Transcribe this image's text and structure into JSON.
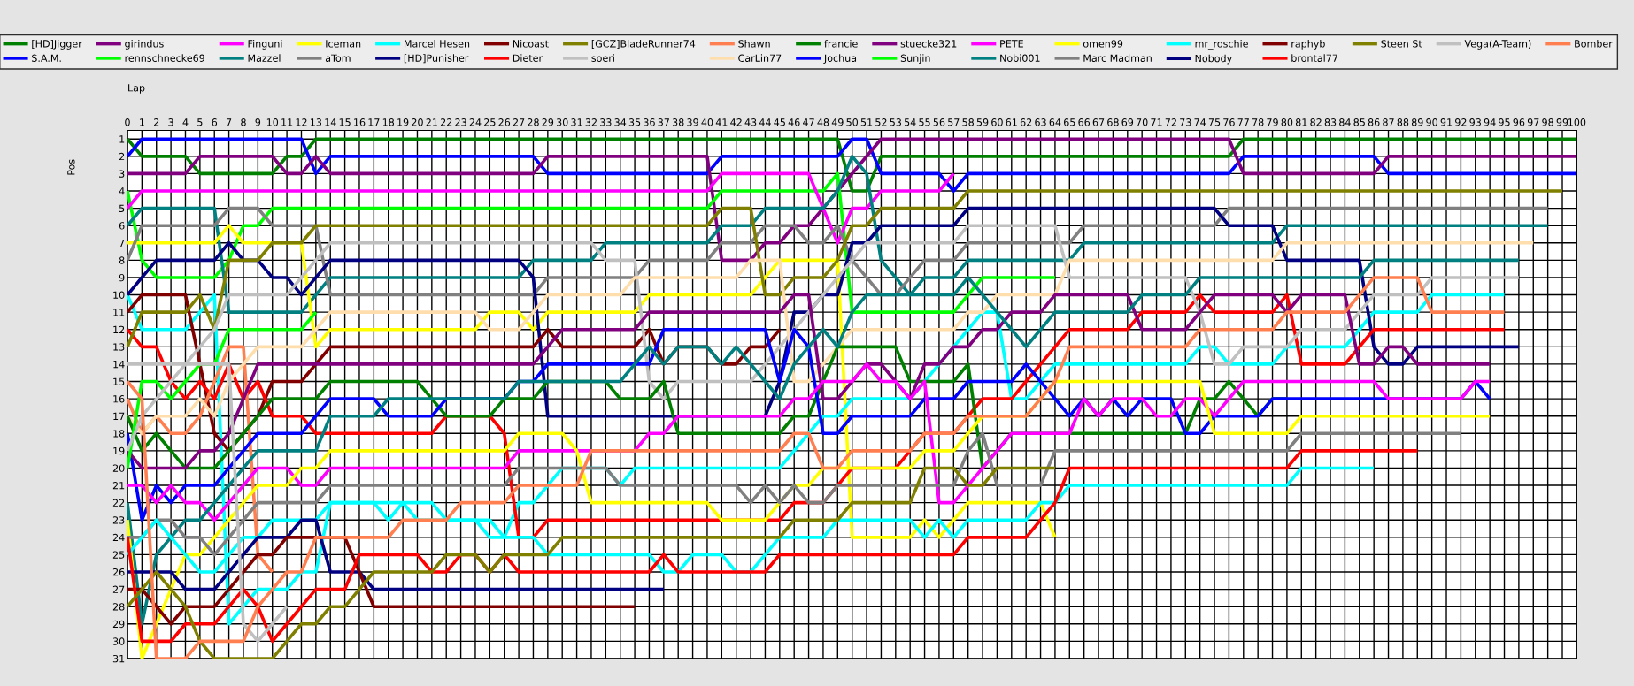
{
  "chart_data": {
    "type": "line",
    "xlabel": "Lap",
    "ylabel": "Pos",
    "xlim": [
      0,
      100
    ],
    "ylim": [
      31,
      0.5
    ],
    "xticks": [
      0,
      1,
      2,
      3,
      4,
      5,
      6,
      7,
      8,
      9,
      10,
      11,
      12,
      13,
      14,
      15,
      16,
      17,
      18,
      19,
      20,
      21,
      22,
      23,
      24,
      25,
      26,
      27,
      28,
      29,
      30,
      31,
      32,
      33,
      34,
      35,
      36,
      37,
      38,
      39,
      40,
      41,
      42,
      43,
      44,
      45,
      46,
      47,
      48,
      49,
      50,
      51,
      52,
      53,
      54,
      55,
      56,
      57,
      58,
      59,
      60,
      61,
      62,
      63,
      64,
      65,
      66,
      67,
      68,
      69,
      70,
      71,
      72,
      73,
      74,
      75,
      76,
      77,
      78,
      79,
      80,
      81,
      82,
      83,
      84,
      85,
      86,
      87,
      88,
      89,
      90,
      91,
      92,
      93,
      94,
      95,
      96,
      97,
      98,
      99,
      100
    ],
    "yticks": [
      1,
      2,
      3,
      4,
      5,
      6,
      7,
      8,
      9,
      10,
      11,
      12,
      13,
      14,
      15,
      16,
      17,
      18,
      19,
      20,
      21,
      22,
      23,
      24,
      25,
      26,
      27,
      28,
      29,
      30,
      31
    ],
    "grid": true,
    "legend": "top",
    "marker": "none",
    "line_style": "solid",
    "series": [
      {
        "name": "[HD]Jigger",
        "color": "#008000",
        "x": [
          0,
          1,
          4,
          5,
          10,
          11,
          12,
          13,
          49,
          50,
          51,
          52,
          76,
          77,
          100
        ],
        "values": [
          1,
          2,
          2,
          3,
          3,
          2,
          2,
          1,
          1,
          4,
          4,
          2,
          2,
          1,
          1
        ]
      },
      {
        "name": "S.A.M.",
        "color": "#0000ff",
        "x": [
          0,
          1,
          12,
          13,
          14,
          28,
          29,
          40,
          41,
          49,
          50,
          51,
          52,
          56,
          57,
          58,
          76,
          77,
          86,
          87,
          100
        ],
        "values": [
          2,
          1,
          1,
          3,
          2,
          2,
          3,
          3,
          2,
          2,
          1,
          1,
          3,
          3,
          4,
          3,
          3,
          2,
          2,
          3,
          3
        ]
      },
      {
        "name": "girindus",
        "color": "#800080",
        "x": [
          0,
          4,
          5,
          10,
          11,
          12,
          13,
          14,
          28,
          29,
          40,
          41,
          43,
          44,
          45,
          46,
          47,
          52,
          76,
          77,
          86,
          87,
          100
        ],
        "values": [
          3,
          3,
          2,
          2,
          3,
          3,
          2,
          3,
          3,
          2,
          2,
          8,
          8,
          7,
          7,
          6,
          6,
          1,
          1,
          3,
          3,
          2,
          2
        ]
      },
      {
        "name": "rennschnecke69",
        "color": "#00ff00",
        "x": [
          0,
          1,
          2,
          6,
          7,
          8,
          9,
          10,
          40,
          41,
          48,
          49,
          50,
          57,
          58,
          59,
          64
        ],
        "values": [
          4,
          8,
          9,
          9,
          8,
          6,
          6,
          5,
          5,
          4,
          4,
          3,
          11,
          11,
          10,
          9,
          9
        ]
      },
      {
        "name": "Finguni",
        "color": "#ff00ff",
        "x": [
          0,
          1,
          40,
          41,
          47,
          48,
          49,
          50,
          51,
          52,
          56,
          57
        ],
        "values": [
          5,
          4,
          4,
          3,
          3,
          5,
          7,
          5,
          5,
          4,
          4,
          3
        ]
      },
      {
        "name": "Mazzel",
        "color": "#008080",
        "x": [
          0,
          1,
          6,
          7,
          12,
          13,
          14,
          27,
          28,
          32,
          33,
          40,
          41,
          43,
          44,
          48,
          49,
          50,
          51,
          52,
          53,
          54,
          55,
          57,
          58,
          65,
          66,
          79,
          80,
          98
        ],
        "values": [
          6,
          5,
          5,
          11,
          11,
          10,
          9,
          9,
          8,
          8,
          7,
          7,
          6,
          6,
          5,
          5,
          4,
          2,
          3,
          8,
          9,
          10,
          9,
          9,
          8,
          8,
          7,
          7,
          6,
          6
        ]
      },
      {
        "name": "Iceman",
        "color": "#ffff00",
        "x": [
          0,
          6,
          7,
          8,
          12,
          13,
          14,
          24,
          25,
          27,
          28,
          29,
          35,
          36,
          43,
          44,
          45,
          49,
          50,
          54,
          55,
          56,
          57,
          58,
          63,
          64
        ],
        "values": [
          7,
          7,
          6,
          7,
          7,
          13,
          12,
          12,
          11,
          11,
          12,
          11,
          11,
          10,
          10,
          9,
          8,
          8,
          24,
          24,
          23,
          24,
          23,
          22,
          22,
          24
        ]
      },
      {
        "name": "aTom",
        "color": "#808080",
        "x": [
          0,
          1,
          6,
          7,
          9,
          10,
          13,
          14,
          28,
          29,
          35,
          36,
          40,
          41,
          43,
          44,
          46,
          47,
          48,
          49,
          50,
          51,
          52,
          53,
          54,
          55,
          57,
          58,
          65,
          66,
          75,
          76,
          98
        ],
        "values": [
          8,
          6,
          6,
          5,
          5,
          6,
          6,
          10,
          10,
          9,
          9,
          8,
          8,
          7,
          7,
          6,
          6,
          7,
          7,
          6,
          8,
          9,
          10,
          10,
          9,
          8,
          8,
          7,
          7,
          6,
          6,
          5,
          5
        ]
      },
      {
        "name": "Marcel Hesen",
        "color": "#00ffff",
        "x": [
          0,
          1,
          4,
          5,
          6,
          7,
          8,
          9,
          11,
          12,
          13,
          14,
          21,
          22,
          25,
          26,
          27,
          28,
          29,
          30,
          33,
          34,
          35,
          45,
          46,
          47,
          48,
          49,
          50,
          54,
          55,
          56,
          57,
          58,
          59,
          60,
          61,
          62,
          63,
          64,
          73,
          74,
          75,
          76,
          79,
          80,
          84,
          85,
          86,
          89,
          90,
          95
        ],
        "values": [
          10,
          12,
          12,
          11,
          10,
          29,
          28,
          27,
          27,
          26,
          26,
          22,
          22,
          23,
          23,
          24,
          22,
          22,
          21,
          20,
          20,
          21,
          20,
          20,
          19,
          18,
          17,
          17,
          16,
          16,
          15,
          14,
          13,
          12,
          11,
          11,
          16,
          16,
          15,
          14,
          14,
          13,
          13,
          14,
          14,
          13,
          13,
          12,
          11,
          11,
          10,
          10
        ]
      },
      {
        "name": "[HD]Punisher",
        "color": "#000080",
        "x": [
          0,
          1,
          2,
          6,
          7,
          8,
          9,
          10,
          11,
          12,
          13,
          14,
          27,
          28,
          29,
          44,
          45,
          46,
          47,
          48,
          49,
          50,
          51,
          52,
          57,
          58,
          75,
          76,
          79,
          80,
          85,
          86,
          87,
          88,
          89,
          96
        ],
        "values": [
          10,
          9,
          8,
          8,
          7,
          8,
          8,
          9,
          9,
          10,
          9,
          8,
          8,
          9,
          17,
          17,
          15,
          11,
          11,
          10,
          10,
          7,
          7,
          6,
          6,
          5,
          5,
          6,
          6,
          8,
          8,
          13,
          14,
          14,
          13,
          13
        ]
      },
      {
        "name": "Nicoast",
        "color": "#800000",
        "x": [
          0,
          1,
          4,
          5,
          6,
          7,
          8,
          9,
          10,
          12,
          13,
          14,
          28,
          29,
          30,
          35,
          36,
          37,
          38,
          40,
          41,
          42,
          43,
          44,
          45
        ],
        "values": [
          11,
          10,
          10,
          14,
          18,
          19,
          18,
          17,
          15,
          15,
          14,
          13,
          13,
          12,
          13,
          13,
          12,
          14,
          13,
          13,
          14,
          14,
          13,
          13,
          12
        ]
      },
      {
        "name": "Dieter",
        "color": "#ff0000",
        "x": [
          0,
          1,
          2,
          3,
          4,
          5,
          6,
          7,
          8,
          9,
          10,
          12,
          13,
          21,
          22,
          25,
          26,
          27,
          28,
          29,
          45,
          46,
          48,
          49,
          50,
          53,
          54,
          55,
          57,
          58,
          59,
          61,
          62,
          63,
          64,
          65,
          69,
          70,
          73,
          74,
          75,
          79,
          80,
          81,
          84,
          85,
          86,
          95
        ],
        "values": [
          12,
          13,
          13,
          15,
          16,
          15,
          16,
          14,
          16,
          15,
          17,
          17,
          18,
          18,
          17,
          17,
          18,
          24,
          24,
          23,
          23,
          22,
          22,
          21,
          20,
          20,
          19,
          18,
          18,
          17,
          16,
          16,
          15,
          14,
          13,
          12,
          12,
          11,
          11,
          10,
          11,
          11,
          10,
          14,
          14,
          13,
          12,
          12
        ]
      },
      {
        "name": "[GCZ]BladeRunner74",
        "color": "#808000",
        "x": [
          0,
          1,
          4,
          5,
          6,
          7,
          9,
          10,
          12,
          13,
          40,
          41,
          43,
          44,
          45,
          46,
          48,
          49,
          50,
          51,
          52,
          57,
          58,
          99
        ],
        "values": [
          13,
          11,
          11,
          10,
          12,
          8,
          8,
          7,
          7,
          6,
          6,
          5,
          5,
          10,
          10,
          9,
          9,
          8,
          6,
          6,
          5,
          5,
          4,
          4
        ]
      },
      {
        "name": "soeri",
        "color": "#c0c0c0",
        "x": [
          0,
          4,
          5,
          6,
          7,
          11,
          12,
          13,
          14,
          32,
          33,
          35,
          36,
          37,
          38,
          43,
          44,
          45,
          46,
          47,
          48,
          49,
          50,
          51,
          57,
          58,
          64,
          65,
          73,
          74,
          75,
          76,
          77,
          80,
          81,
          84,
          85,
          86,
          89,
          90,
          96
        ],
        "values": [
          14,
          14,
          13,
          12,
          10,
          10,
          9,
          8,
          7,
          7,
          8,
          8,
          15,
          16,
          15,
          15,
          14,
          13,
          12,
          11,
          10,
          9,
          8,
          7,
          7,
          6,
          6,
          9,
          9,
          11,
          14,
          14,
          13,
          13,
          12,
          12,
          11,
          10,
          10,
          9,
          9
        ]
      },
      {
        "name": "Shawn",
        "color": "#ff7f50",
        "x": [
          0,
          1,
          2,
          3,
          4,
          5,
          6,
          7,
          8,
          9,
          10
        ],
        "values": [
          16,
          18,
          17,
          18,
          18,
          17,
          15,
          13,
          13,
          25,
          26
        ]
      },
      {
        "name": "CarLin77",
        "color": "#ffdead",
        "x": [
          0,
          1,
          2,
          4,
          5,
          6,
          7,
          8,
          9,
          12,
          13,
          14,
          24,
          25,
          27,
          28,
          29,
          34,
          35,
          42,
          43,
          45,
          46,
          47,
          48,
          49,
          50,
          57,
          58,
          59,
          60,
          64,
          65,
          79,
          80,
          97
        ],
        "values": [
          17,
          18,
          17,
          17,
          16,
          17,
          15,
          14,
          13,
          13,
          12,
          11,
          11,
          12,
          12,
          11,
          10,
          10,
          9,
          9,
          8,
          8,
          15,
          15,
          14,
          13,
          12,
          12,
          11,
          11,
          10,
          10,
          8,
          8,
          7,
          7
        ]
      },
      {
        "name": "francie",
        "color": "#008000",
        "x": [
          0,
          1,
          2,
          3,
          4,
          6,
          7,
          8,
          9,
          10,
          13,
          14,
          20,
          21,
          22,
          25,
          26,
          28,
          29,
          33,
          34,
          36,
          37,
          38,
          45,
          46,
          47,
          48,
          49,
          53,
          54,
          57,
          58,
          59,
          60,
          61,
          73,
          74,
          75,
          76,
          77,
          78,
          79,
          80
        ],
        "values": [
          17,
          19,
          18,
          19,
          20,
          20,
          19,
          18,
          17,
          16,
          16,
          15,
          15,
          16,
          17,
          17,
          16,
          16,
          15,
          15,
          16,
          16,
          15,
          18,
          18,
          17,
          17,
          15,
          13,
          13,
          15,
          15,
          14,
          20,
          19,
          18,
          18,
          16,
          16,
          15,
          16,
          17,
          16,
          16
        ]
      },
      {
        "name": "Jochua",
        "color": "#0000ff",
        "x": [
          0,
          1,
          2,
          3,
          4,
          6,
          7,
          8,
          9,
          12,
          13,
          14,
          17,
          18,
          21,
          22,
          26,
          27,
          28,
          29,
          36,
          37,
          44,
          45,
          46,
          47,
          48,
          49,
          50,
          54,
          55,
          57,
          58,
          61,
          62,
          63,
          64,
          65,
          66,
          67,
          68,
          69,
          70,
          72,
          73,
          74,
          75,
          78,
          79,
          92,
          93,
          94
        ],
        "values": [
          18,
          23,
          21,
          22,
          21,
          21,
          20,
          19,
          18,
          18,
          17,
          16,
          16,
          17,
          17,
          16,
          16,
          15,
          15,
          14,
          14,
          12,
          12,
          15,
          12,
          13,
          18,
          18,
          17,
          17,
          16,
          16,
          15,
          15,
          14,
          15,
          16,
          17,
          16,
          17,
          16,
          17,
          16,
          16,
          18,
          18,
          17,
          17,
          16,
          16,
          15,
          16
        ]
      },
      {
        "name": "stuecke321",
        "color": "#800080",
        "x": [
          0,
          1,
          4,
          5,
          6,
          7,
          8,
          9,
          28,
          29,
          30,
          35,
          36,
          45,
          46,
          47,
          48,
          49,
          50,
          51,
          52,
          53,
          54,
          55,
          56,
          57,
          58,
          59,
          60,
          61,
          63,
          64,
          69,
          70,
          73,
          74,
          75,
          79,
          80,
          81,
          84,
          85,
          86,
          87,
          88,
          89,
          94
        ],
        "values": [
          19,
          20,
          20,
          19,
          19,
          18,
          16,
          14,
          14,
          13,
          12,
          12,
          11,
          11,
          10,
          10,
          16,
          16,
          15,
          14,
          14,
          15,
          16,
          14,
          14,
          13,
          13,
          12,
          12,
          11,
          11,
          10,
          10,
          12,
          12,
          11,
          10,
          10,
          11,
          10,
          10,
          14,
          14,
          13,
          13,
          14,
          14
        ]
      },
      {
        "name": "Sunjin",
        "color": "#00ff00",
        "x": [
          0,
          1,
          2,
          3,
          4,
          5,
          6,
          7,
          12,
          13
        ],
        "values": [
          20,
          15,
          15,
          16,
          15,
          14,
          14,
          12,
          12,
          11
        ]
      },
      {
        "name": "PETE",
        "color": "#ff00ff",
        "x": [
          0,
          1,
          2,
          3,
          4,
          5,
          6,
          7,
          8,
          9,
          11,
          12,
          13,
          14,
          26,
          27,
          35,
          36,
          37,
          38,
          45,
          46,
          47,
          48,
          50,
          51,
          52,
          53,
          54,
          55,
          56,
          57,
          58,
          59,
          60,
          61,
          65,
          66,
          67,
          68,
          70,
          71,
          72,
          73,
          74,
          75,
          76,
          77,
          86,
          87,
          92,
          93,
          94
        ],
        "values": [
          21,
          21,
          22,
          21,
          22,
          22,
          23,
          22,
          21,
          20,
          20,
          21,
          21,
          20,
          20,
          19,
          19,
          18,
          18,
          17,
          17,
          16,
          16,
          15,
          15,
          14,
          15,
          15,
          16,
          15,
          22,
          22,
          21,
          20,
          19,
          18,
          18,
          16,
          17,
          16,
          16,
          17,
          17,
          16,
          16,
          17,
          16,
          15,
          15,
          16,
          16,
          15,
          15
        ]
      },
      {
        "name": "Nobi001",
        "color": "#008080",
        "x": [
          0,
          1,
          2,
          3,
          4,
          5,
          6,
          7,
          8,
          9,
          13,
          14,
          17,
          18,
          26,
          27,
          34,
          35,
          36,
          37,
          38,
          40,
          41,
          42,
          43,
          44,
          45,
          46,
          47,
          48,
          49,
          50,
          51,
          57,
          58,
          60,
          61,
          62,
          63,
          64,
          69,
          70,
          73,
          74,
          85,
          86,
          96
        ],
        "values": [
          22,
          29,
          25,
          24,
          23,
          23,
          22,
          21,
          20,
          19,
          19,
          17,
          17,
          16,
          16,
          15,
          15,
          14,
          13,
          14,
          13,
          13,
          14,
          13,
          14,
          15,
          16,
          14,
          13,
          12,
          13,
          11,
          10,
          10,
          9,
          11,
          12,
          13,
          12,
          11,
          11,
          10,
          10,
          9,
          9,
          8,
          8
        ]
      },
      {
        "name": "omen99",
        "color": "#ffff00",
        "x": [
          0,
          1,
          2,
          3,
          4,
          5,
          6,
          7,
          8,
          9,
          11,
          12,
          13,
          14,
          26,
          27,
          30,
          31,
          32,
          40,
          41,
          44,
          45,
          46,
          47,
          48,
          54,
          55,
          57,
          58,
          59,
          62,
          63,
          64,
          74,
          75,
          80,
          81,
          94
        ],
        "values": [
          23,
          31,
          29,
          27,
          25,
          25,
          24,
          23,
          22,
          21,
          21,
          20,
          20,
          19,
          19,
          18,
          18,
          19,
          22,
          22,
          23,
          23,
          22,
          21,
          21,
          20,
          20,
          19,
          19,
          18,
          17,
          17,
          16,
          15,
          15,
          18,
          18,
          17,
          17
        ]
      },
      {
        "name": "Marc Madman",
        "color": "#808080",
        "x": [
          0,
          1,
          2,
          3,
          4,
          5,
          6,
          7,
          8,
          9,
          13,
          14,
          26,
          27,
          33,
          34,
          42,
          43,
          44,
          45,
          46,
          47,
          48,
          49,
          57,
          58,
          59,
          60,
          63,
          64,
          80,
          81,
          92
        ],
        "values": [
          24,
          24,
          23,
          23,
          24,
          24,
          25,
          24,
          23,
          22,
          22,
          21,
          21,
          20,
          20,
          21,
          21,
          22,
          21,
          22,
          21,
          22,
          22,
          21,
          21,
          19,
          18,
          21,
          21,
          19,
          19,
          18,
          18
        ]
      },
      {
        "name": "mr_roschie",
        "color": "#00ffff",
        "x": [
          0,
          1,
          2,
          3,
          4,
          5,
          6,
          7,
          8,
          9,
          10,
          13,
          14,
          17,
          18,
          19,
          20,
          24,
          25,
          28,
          29,
          36,
          37,
          38,
          39,
          41,
          42,
          43,
          44,
          45,
          48,
          49,
          54,
          55,
          56,
          57,
          58,
          62,
          63,
          64,
          65,
          80,
          81,
          86
        ],
        "values": [
          25,
          24,
          23,
          24,
          25,
          26,
          26,
          25,
          24,
          24,
          23,
          23,
          22,
          22,
          23,
          22,
          23,
          23,
          24,
          24,
          25,
          25,
          26,
          26,
          25,
          25,
          26,
          26,
          25,
          24,
          24,
          23,
          23,
          24,
          23,
          24,
          23,
          23,
          22,
          22,
          21,
          21,
          20,
          20
        ]
      },
      {
        "name": "Nobody",
        "color": "#000080",
        "x": [
          0,
          3,
          4,
          6,
          7,
          8,
          9,
          11,
          12,
          13,
          14,
          16,
          17,
          37
        ],
        "values": [
          26,
          26,
          27,
          27,
          26,
          25,
          24,
          24,
          23,
          23,
          26,
          26,
          27,
          27
        ]
      },
      {
        "name": "raphyb",
        "color": "#800000",
        "x": [
          0,
          1,
          2,
          3,
          4,
          6,
          7,
          8,
          9,
          10,
          11,
          15,
          16,
          17,
          35
        ],
        "values": [
          27,
          27,
          28,
          29,
          28,
          28,
          27,
          26,
          25,
          25,
          24,
          24,
          26,
          28,
          28
        ]
      },
      {
        "name": "brontal77",
        "color": "#ff0000",
        "x": [
          0,
          1,
          3,
          4,
          6,
          7,
          8,
          9,
          10,
          11,
          12,
          13,
          15,
          16,
          20,
          21,
          22,
          23,
          24,
          25,
          26,
          27,
          36,
          37,
          38,
          44,
          45,
          57,
          58,
          62,
          63,
          64,
          65,
          80,
          81,
          89
        ],
        "values": [
          24,
          30,
          30,
          29,
          29,
          28,
          27,
          28,
          30,
          29,
          28,
          27,
          27,
          25,
          25,
          26,
          26,
          25,
          25,
          26,
          25,
          26,
          26,
          25,
          26,
          26,
          25,
          25,
          24,
          24,
          23,
          22,
          20,
          20,
          19,
          19
        ]
      },
      {
        "name": "Steen St",
        "color": "#808000",
        "x": [
          0,
          1,
          2,
          3,
          4,
          5,
          6,
          10,
          11,
          12,
          13,
          14,
          15,
          16,
          17,
          21,
          22,
          24,
          25,
          26,
          29,
          30,
          45,
          46,
          49,
          50,
          54,
          55,
          57,
          58,
          59,
          60,
          64
        ],
        "values": [
          28,
          27,
          26,
          27,
          28,
          30,
          31,
          31,
          30,
          29,
          29,
          28,
          28,
          27,
          26,
          26,
          25,
          25,
          26,
          25,
          25,
          24,
          24,
          23,
          23,
          22,
          22,
          20,
          20,
          21,
          21,
          20,
          20
        ]
      },
      {
        "name": "Vega(A-Team)",
        "color": "#c0c0c0",
        "x": [
          0,
          1,
          2,
          3,
          4,
          5,
          6,
          7,
          8,
          9,
          10,
          11
        ],
        "values": [
          19,
          17,
          16,
          15,
          14,
          14,
          14,
          14,
          29,
          30,
          29,
          28
        ]
      },
      {
        "name": "Bomber",
        "color": "#ff7f50",
        "x": [
          0,
          1,
          2,
          4,
          5,
          8,
          9,
          10,
          11,
          12,
          13,
          18,
          19,
          22,
          23,
          26,
          27,
          31,
          32,
          45,
          46,
          47,
          48,
          49,
          50,
          54,
          55,
          57,
          58,
          62,
          63,
          64,
          65,
          73,
          74,
          79,
          80,
          84,
          85,
          86,
          89,
          90,
          95
        ],
        "values": [
          15,
          16,
          31,
          31,
          30,
          30,
          28,
          27,
          26,
          26,
          24,
          24,
          23,
          23,
          22,
          22,
          21,
          21,
          19,
          19,
          18,
          18,
          20,
          20,
          19,
          19,
          18,
          18,
          17,
          17,
          16,
          15,
          13,
          13,
          12,
          12,
          11,
          11,
          10,
          9,
          9,
          11,
          11
        ]
      }
    ]
  }
}
